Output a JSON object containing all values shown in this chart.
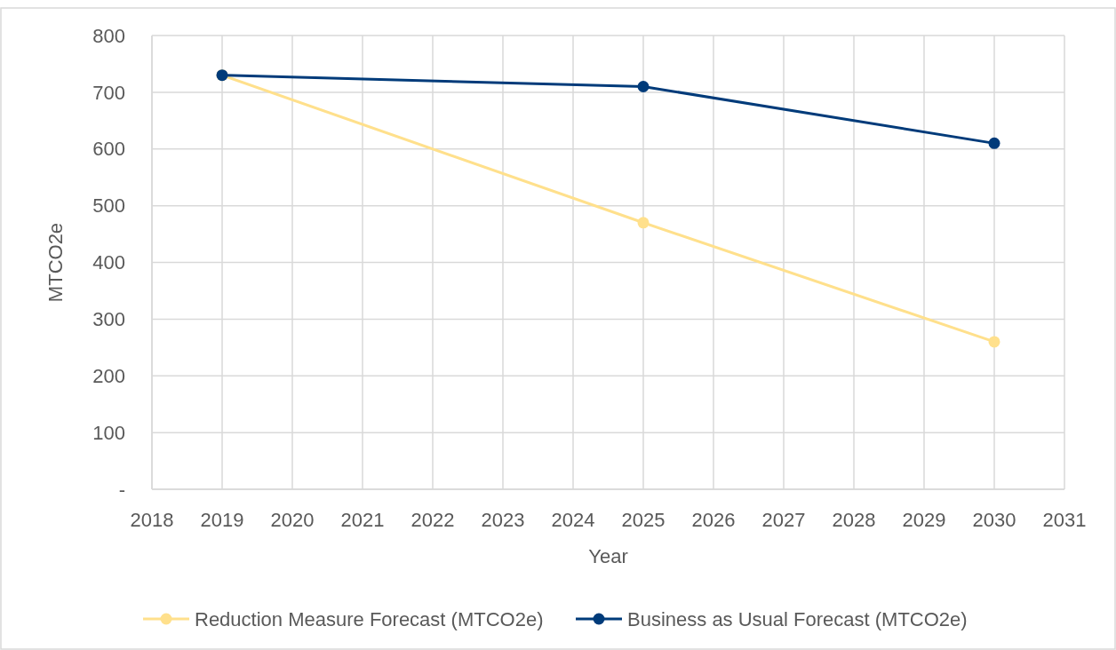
{
  "chart_data": {
    "type": "line",
    "xlabel": "Year",
    "ylabel": "MTCO2e",
    "x": [
      2019,
      2025,
      2030
    ],
    "series": [
      {
        "name": "Reduction Measure Forecast (MTCO2e)",
        "color": "#ffe08c",
        "values": [
          730,
          470,
          260
        ]
      },
      {
        "name": "Business as Usual Forecast (MTCO2e)",
        "color": "#003b7a",
        "values": [
          730,
          710,
          610
        ]
      }
    ],
    "xlim": [
      2018,
      2031
    ],
    "xticks": [
      2018,
      2019,
      2020,
      2021,
      2022,
      2023,
      2024,
      2025,
      2026,
      2027,
      2028,
      2029,
      2030,
      2031
    ],
    "ylim": [
      0,
      800
    ],
    "yticks": [
      {
        "value": 0,
        "label": "-"
      },
      100,
      200,
      300,
      400,
      500,
      600,
      700,
      800
    ],
    "grid": true,
    "legend": "bottom",
    "marker": "circle",
    "line_style": "solid"
  }
}
